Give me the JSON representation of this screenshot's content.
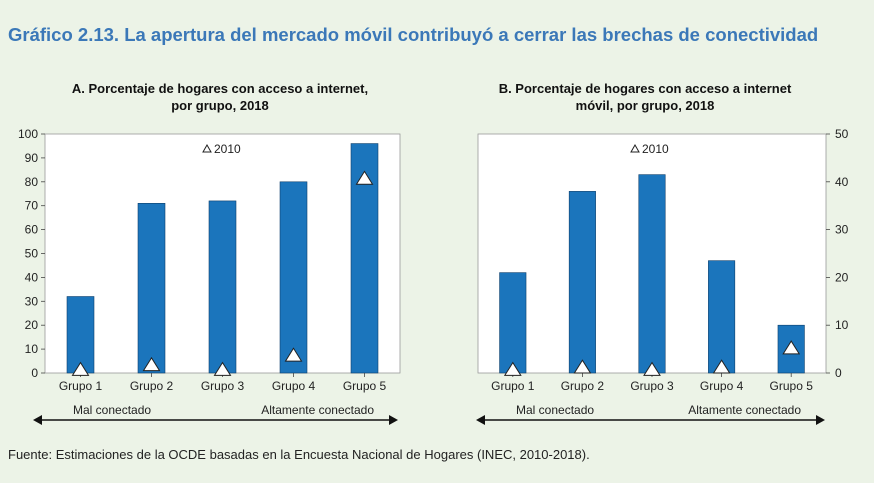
{
  "title": "Gráfico 2.13. La apertura del mercado móvil contribuyó a cerrar las brechas de conectividad",
  "source": "Fuente: Estimaciones de la OCDE basadas en la Encuesta Nacional de Hogares (INEC, 2010-2018).",
  "colors": {
    "bar": "#1b75bc",
    "background": "#ecf3e7",
    "plot": "#ffffff",
    "title": "#3b78b8"
  },
  "chart_data": [
    {
      "type": "bar",
      "title": "A. Porcentaje de hogares con acceso a internet, por grupo, 2018",
      "title_lines": [
        "A. Porcentaje de hogares con acceso a internet,",
        "por grupo, 2018"
      ],
      "categories": [
        "Grupo 1",
        "Grupo 2",
        "Grupo 3",
        "Grupo 4",
        "Grupo 5"
      ],
      "series": [
        {
          "name": "2018",
          "values": [
            32,
            71,
            72,
            80,
            96
          ]
        },
        {
          "name": "2010",
          "values": [
            1,
            3,
            1,
            7,
            81
          ],
          "marker": "triangle"
        }
      ],
      "legend_label": "2010",
      "ylim": [
        0,
        100
      ],
      "yticks": [
        0,
        10,
        20,
        30,
        40,
        50,
        60,
        70,
        80,
        90,
        100
      ],
      "yaxis_side": "left",
      "arrow_left_label": "Mal conectado",
      "arrow_right_label": "Altamente conectado"
    },
    {
      "type": "bar",
      "title": "B. Porcentaje de hogares con acceso a internet móvil, por grupo, 2018",
      "title_lines": [
        "B. Porcentaje de hogares con acceso a internet",
        "móvil, por grupo, 2018"
      ],
      "categories": [
        "Grupo 1",
        "Grupo 2",
        "Grupo 3",
        "Grupo 4",
        "Grupo 5"
      ],
      "series": [
        {
          "name": "2018",
          "values": [
            21,
            38,
            41.5,
            23.5,
            10
          ]
        },
        {
          "name": "2010",
          "values": [
            0.5,
            1,
            0.5,
            1,
            5
          ],
          "marker": "triangle"
        }
      ],
      "legend_label": "2010",
      "ylim": [
        0,
        50
      ],
      "yticks": [
        0,
        10,
        20,
        30,
        40,
        50
      ],
      "yaxis_side": "right",
      "arrow_left_label": "Mal conectado",
      "arrow_right_label": "Altamente conectado"
    }
  ]
}
